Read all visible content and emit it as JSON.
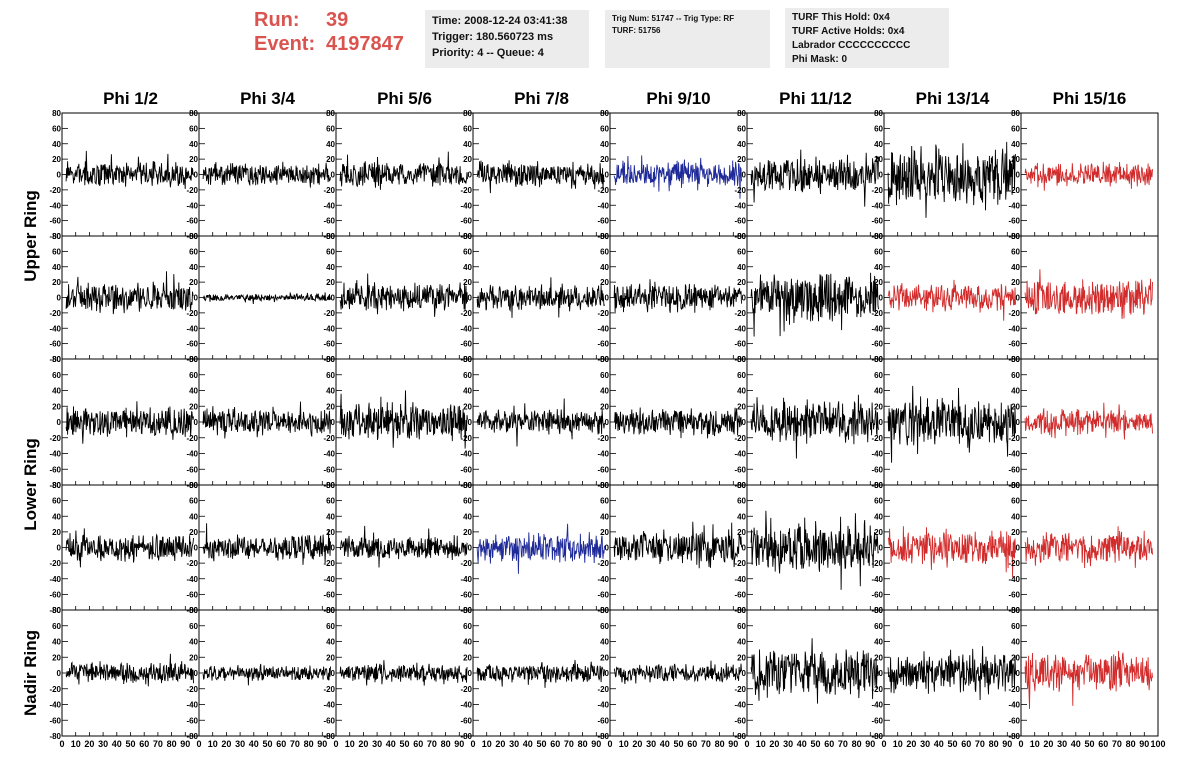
{
  "header": {
    "run_label": "Run:",
    "run_value": "39",
    "event_label": "Event:",
    "event_value": "4197847",
    "time_box": [
      "Time: 2008-12-24 03:41:38",
      "Trigger: 180.560723 ms",
      "Priority: 4 -- Queue: 4"
    ],
    "trig_box": [
      "Trig Num: 51747 -- Trig Type: RF",
      "",
      "TURF: 51756"
    ],
    "turf_box": [
      "TURF This Hold: 0x4",
      "TURF Active Holds: 0x4",
      "Labrador CCCCCCCCCC",
      "Phi Mask: 0"
    ]
  },
  "chart_data": {
    "type": "line",
    "columns": [
      "Phi 1/2",
      "Phi 3/4",
      "Phi 5/6",
      "Phi 7/8",
      "Phi 9/10",
      "Phi 11/12",
      "Phi 13/14",
      "Phi 15/16"
    ],
    "rows": [
      "Upper Ring",
      "Lower Ring",
      "Nadir Ring"
    ],
    "xlim": [
      0,
      100
    ],
    "ylim": [
      -80,
      80
    ],
    "x_ticks": [
      "0",
      "10",
      "20",
      "30",
      "40",
      "50",
      "60",
      "70",
      "80",
      "90",
      "100"
    ],
    "y_ticks": [
      "80",
      "60",
      "40",
      "20",
      "0",
      "-20",
      "-40",
      "-60",
      "-80"
    ],
    "colors": {
      "default": "#000000",
      "highlight_blue": "#1f2a99",
      "highlight_red": "#d22b2b"
    },
    "panels": [
      {
        "row": 0,
        "col": 0,
        "color": "default",
        "amplitude": 15
      },
      {
        "row": 0,
        "col": 1,
        "color": "default",
        "amplitude": 13
      },
      {
        "row": 0,
        "col": 2,
        "color": "default",
        "amplitude": 15
      },
      {
        "row": 0,
        "col": 3,
        "color": "default",
        "amplitude": 16
      },
      {
        "row": 0,
        "col": 4,
        "color": "highlight_blue",
        "amplitude": 16
      },
      {
        "row": 0,
        "col": 5,
        "color": "default",
        "amplitude": 22
      },
      {
        "row": 0,
        "col": 6,
        "color": "default",
        "amplitude": 35
      },
      {
        "row": 0,
        "col": 7,
        "color": "highlight_red",
        "amplitude": 14
      },
      {
        "row": 1,
        "col": 0,
        "color": "default",
        "amplitude": 18
      },
      {
        "row": 1,
        "col": 1,
        "color": "default",
        "amplitude": 4
      },
      {
        "row": 1,
        "col": 2,
        "color": "default",
        "amplitude": 17
      },
      {
        "row": 1,
        "col": 3,
        "color": "default",
        "amplitude": 15
      },
      {
        "row": 1,
        "col": 4,
        "color": "default",
        "amplitude": 17
      },
      {
        "row": 1,
        "col": 5,
        "color": "default",
        "amplitude": 28
      },
      {
        "row": 1,
        "col": 6,
        "color": "highlight_red",
        "amplitude": 16
      },
      {
        "row": 1,
        "col": 7,
        "color": "highlight_red",
        "amplitude": 22
      },
      {
        "row": 2,
        "col": 0,
        "color": "default",
        "amplitude": 18
      },
      {
        "row": 2,
        "col": 1,
        "color": "default",
        "amplitude": 15
      },
      {
        "row": 2,
        "col": 2,
        "color": "default",
        "amplitude": 22
      },
      {
        "row": 2,
        "col": 3,
        "color": "default",
        "amplitude": 15
      },
      {
        "row": 2,
        "col": 4,
        "color": "default",
        "amplitude": 16
      },
      {
        "row": 2,
        "col": 5,
        "color": "default",
        "amplitude": 24
      },
      {
        "row": 2,
        "col": 6,
        "color": "default",
        "amplitude": 28
      },
      {
        "row": 2,
        "col": 7,
        "color": "highlight_red",
        "amplitude": 14
      },
      {
        "row": 3,
        "col": 0,
        "color": "default",
        "amplitude": 16
      },
      {
        "row": 3,
        "col": 1,
        "color": "default",
        "amplitude": 15
      },
      {
        "row": 3,
        "col": 2,
        "color": "default",
        "amplitude": 14
      },
      {
        "row": 3,
        "col": 3,
        "color": "highlight_blue",
        "amplitude": 17
      },
      {
        "row": 3,
        "col": 4,
        "color": "default",
        "amplitude": 20
      },
      {
        "row": 3,
        "col": 5,
        "color": "default",
        "amplitude": 28
      },
      {
        "row": 3,
        "col": 6,
        "color": "highlight_red",
        "amplitude": 19
      },
      {
        "row": 3,
        "col": 7,
        "color": "highlight_red",
        "amplitude": 19
      },
      {
        "row": 4,
        "col": 0,
        "color": "default",
        "amplitude": 13
      },
      {
        "row": 4,
        "col": 1,
        "color": "default",
        "amplitude": 9
      },
      {
        "row": 4,
        "col": 2,
        "color": "default",
        "amplitude": 11
      },
      {
        "row": 4,
        "col": 3,
        "color": "default",
        "amplitude": 11
      },
      {
        "row": 4,
        "col": 4,
        "color": "default",
        "amplitude": 11
      },
      {
        "row": 4,
        "col": 5,
        "color": "default",
        "amplitude": 28
      },
      {
        "row": 4,
        "col": 6,
        "color": "default",
        "amplitude": 22
      },
      {
        "row": 4,
        "col": 7,
        "color": "highlight_red",
        "amplitude": 22
      }
    ]
  }
}
